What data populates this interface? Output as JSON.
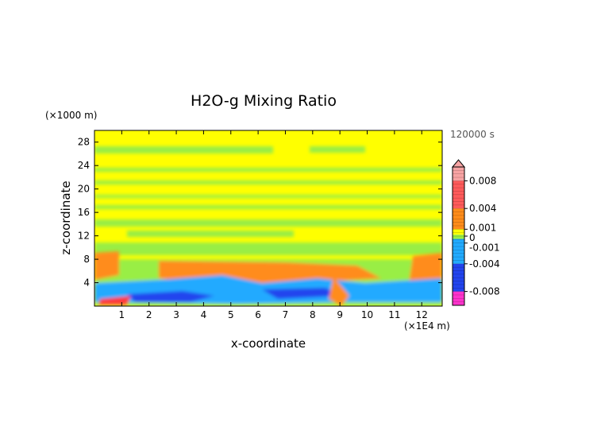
{
  "chart_data": {
    "type": "heatmap",
    "title": "H2O-g Mixing Ratio",
    "time_label": "120000 s",
    "xlabel": "x-coordinate",
    "ylabel": "z-coordinate",
    "x_unit": "(×1E4 m)",
    "y_unit": "(×1000 m)",
    "xlim": [
      0,
      12.75
    ],
    "ylim": [
      0,
      30
    ],
    "x_ticks": [
      "1",
      "2",
      "3",
      "4",
      "5",
      "6",
      "7",
      "8",
      "9",
      "10",
      "11",
      "12"
    ],
    "y_ticks": [
      "4",
      "8",
      "12",
      "16",
      "20",
      "24",
      "28"
    ],
    "colorbar": {
      "range": [
        -0.01,
        0.01
      ],
      "tick_labels": [
        "0.008",
        "0.004",
        "0.001",
        "0",
        "-0.001",
        "-0.004",
        "-0.008"
      ],
      "tick_values": [
        0.008,
        0.004,
        0.001,
        0,
        -0.001,
        -0.004,
        -0.008
      ],
      "colors": {
        "pos_high": "#f7a3a3",
        "pos_mid": "#ff5a5a",
        "pos_low": "#ff8c1a",
        "near_pos": "#ffff00",
        "near_neg": "#99ee44",
        "neg_low": "#22aaff",
        "neg_mid": "#2244ee",
        "neg_high": "#ff33cc"
      }
    }
  }
}
